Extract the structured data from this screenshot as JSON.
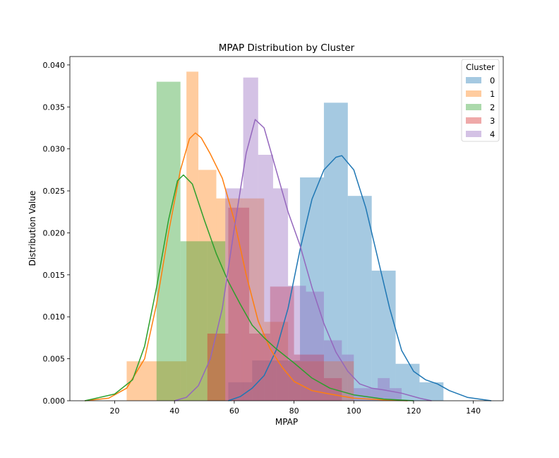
{
  "chart_data": {
    "type": "histogram",
    "title": "MPAP Distribution by Cluster",
    "xlabel": "MPAP",
    "ylabel": "Distribution Value",
    "xlim": [
      5,
      150
    ],
    "ylim": [
      0,
      0.041
    ],
    "xticks": [
      20,
      40,
      60,
      80,
      100,
      120,
      140
    ],
    "xtick_labels": [
      "20",
      "40",
      "60",
      "80",
      "100",
      "120",
      "140"
    ],
    "yticks": [
      0,
      0.005,
      0.01,
      0.015,
      0.02,
      0.025,
      0.03,
      0.035,
      0.04
    ],
    "ytick_labels": [
      "0.000",
      "0.005",
      "0.010",
      "0.015",
      "0.020",
      "0.025",
      "0.030",
      "0.035",
      "0.040"
    ],
    "grid": false,
    "legend": {
      "title": "Cluster",
      "placement": "top-right"
    },
    "series": [
      {
        "name": "0",
        "color": "#1f77b4",
        "bins": [
          [
            58,
            66,
            0.0022
          ],
          [
            66,
            74,
            0.0048
          ],
          [
            74,
            82,
            0.0048
          ],
          [
            82,
            90,
            0.0266
          ],
          [
            90,
            98,
            0.0355
          ],
          [
            98,
            106,
            0.0244
          ],
          [
            106,
            114,
            0.0155
          ],
          [
            114,
            122,
            0.0044
          ],
          [
            122,
            130,
            0.0022
          ]
        ],
        "kde_x": [
          58,
          62,
          66,
          70,
          74,
          78,
          82,
          86,
          90,
          94,
          96,
          100,
          104,
          108,
          112,
          116,
          120,
          124,
          128,
          132,
          138,
          146
        ],
        "kde_y": [
          0.0,
          0.0005,
          0.0015,
          0.003,
          0.006,
          0.011,
          0.018,
          0.024,
          0.0275,
          0.029,
          0.0292,
          0.0275,
          0.023,
          0.017,
          0.011,
          0.006,
          0.0035,
          0.0025,
          0.002,
          0.0012,
          0.0004,
          0.0
        ]
      },
      {
        "name": "1",
        "color": "#ff7f0e",
        "bins": [
          [
            24,
            34,
            0.0047
          ],
          [
            34,
            44,
            0.0047
          ],
          [
            44,
            48,
            0.0392
          ],
          [
            48,
            54,
            0.0275
          ],
          [
            54,
            62,
            0.0241
          ],
          [
            62,
            70,
            0.0241
          ],
          [
            70,
            78,
            0.0094
          ],
          [
            78,
            90,
            0.0047
          ],
          [
            90,
            100,
            0.0047
          ]
        ],
        "kde_x": [
          10,
          18,
          24,
          30,
          34,
          38,
          42,
          45,
          47,
          49,
          52,
          56,
          60,
          64,
          68,
          72,
          76,
          80,
          86,
          92,
          100,
          110,
          118
        ],
        "kde_y": [
          0.0,
          0.0003,
          0.0015,
          0.005,
          0.0115,
          0.02,
          0.0275,
          0.0312,
          0.0319,
          0.0313,
          0.0294,
          0.0265,
          0.0215,
          0.015,
          0.0095,
          0.0062,
          0.004,
          0.0023,
          0.0012,
          0.0008,
          0.0003,
          0.0001,
          0.0
        ]
      },
      {
        "name": "2",
        "color": "#2ca02c",
        "bins": [
          [
            34,
            42,
            0.038
          ],
          [
            42,
            51,
            0.019
          ],
          [
            51,
            57,
            0.019
          ]
        ],
        "kde_x": [
          10,
          20,
          26,
          30,
          34,
          38,
          41,
          43,
          46,
          50,
          54,
          58,
          62,
          66,
          70,
          74,
          80,
          86,
          92,
          100,
          110,
          120
        ],
        "kde_y": [
          0.0,
          0.0008,
          0.0025,
          0.0065,
          0.0135,
          0.0215,
          0.0262,
          0.0269,
          0.0258,
          0.0215,
          0.0175,
          0.0142,
          0.0115,
          0.009,
          0.0075,
          0.0062,
          0.0045,
          0.0027,
          0.0015,
          0.0007,
          0.0002,
          0.0
        ]
      },
      {
        "name": "3",
        "color": "#d62728",
        "bins": [
          [
            51,
            58,
            0.008
          ],
          [
            58,
            65,
            0.023
          ],
          [
            65,
            72,
            0.008
          ],
          [
            72,
            80,
            0.0136
          ],
          [
            80,
            90,
            0.0055
          ],
          [
            90,
            96,
            0.0027
          ]
        ]
      },
      {
        "name": "4",
        "color": "#9467bd",
        "bins": [
          [
            57,
            63,
            0.0253
          ],
          [
            63,
            68,
            0.0385
          ],
          [
            68,
            73,
            0.0293
          ],
          [
            73,
            78,
            0.0253
          ],
          [
            78,
            84,
            0.0137
          ],
          [
            84,
            90,
            0.013
          ],
          [
            90,
            96,
            0.0072
          ],
          [
            96,
            100,
            0.0055
          ],
          [
            100,
            104,
            0.0015
          ],
          [
            104,
            108,
            0.0015
          ],
          [
            108,
            112,
            0.0027
          ],
          [
            112,
            116,
            0.0015
          ]
        ],
        "kde_x": [
          40,
          44,
          48,
          52,
          56,
          60,
          64,
          67,
          70,
          74,
          78,
          82,
          86,
          90,
          94,
          98,
          102,
          106,
          110,
          116,
          122,
          126
        ],
        "kde_y": [
          0.0,
          0.0004,
          0.0018,
          0.005,
          0.011,
          0.0205,
          0.0295,
          0.0335,
          0.0325,
          0.0275,
          0.0225,
          0.0185,
          0.0135,
          0.0092,
          0.0058,
          0.0035,
          0.002,
          0.0015,
          0.0013,
          0.0009,
          0.0003,
          0.0
        ]
      }
    ]
  }
}
